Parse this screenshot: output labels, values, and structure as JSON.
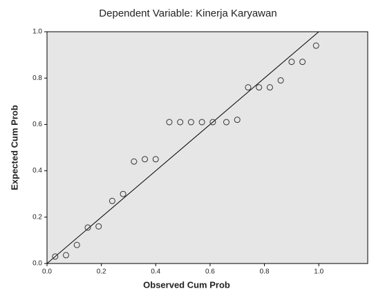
{
  "chart_data": {
    "type": "scatter",
    "title": "Dependent Variable: Kinerja Karyawan",
    "x_label": "Observed Cum Prob",
    "y_label": "Expected Cum Prob",
    "x": [
      0.03,
      0.07,
      0.11,
      0.15,
      0.19,
      0.24,
      0.28,
      0.32,
      0.36,
      0.4,
      0.45,
      0.49,
      0.53,
      0.57,
      0.61,
      0.66,
      0.7,
      0.74,
      0.78,
      0.82,
      0.86,
      0.9,
      0.94,
      0.99
    ],
    "values": [
      0.03,
      0.036,
      0.08,
      0.155,
      0.16,
      0.27,
      0.3,
      0.44,
      0.45,
      0.45,
      0.61,
      0.61,
      0.61,
      0.61,
      0.61,
      0.61,
      0.62,
      0.76,
      0.76,
      0.76,
      0.79,
      0.87,
      0.87,
      0.94
    ],
    "reference_line": {
      "x": [
        0,
        1
      ],
      "y": [
        0,
        1
      ]
    },
    "xlim": [
      0,
      1.18
    ],
    "ylim": [
      0,
      1
    ],
    "xticks": [
      {
        "value": 0,
        "label": "0.0"
      },
      0.2,
      0.4,
      0.6,
      0.8,
      {
        "value": 1,
        "label": "1.0"
      }
    ],
    "yticks": [
      {
        "value": 0,
        "label": "0.0"
      },
      0.2,
      0.4,
      0.6,
      0.8,
      {
        "value": 1,
        "label": "1.0"
      }
    ],
    "plot_background": "#e6e6e6",
    "marker_color": "#333333"
  }
}
